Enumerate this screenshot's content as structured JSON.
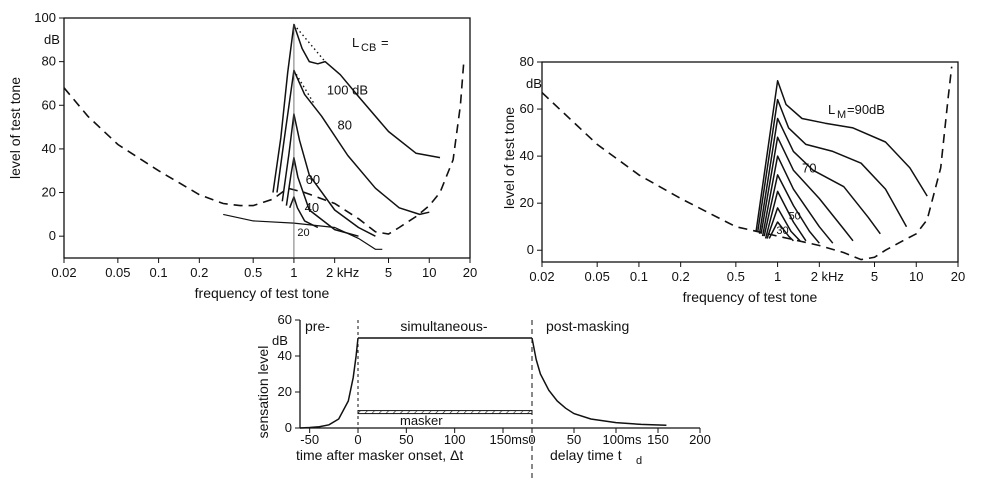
{
  "chart_data": [
    {
      "id": "A",
      "type": "line",
      "xscale": "log",
      "xlim": [
        0.02,
        20
      ],
      "ylim": [
        -10,
        100
      ],
      "xlabel": "frequency of test tone",
      "ylabel": "level of test tone",
      "xticks": [
        {
          "v": 0.02,
          "t": "0.02"
        },
        {
          "v": 0.05,
          "t": "0.05"
        },
        {
          "v": 0.1,
          "t": "0.1"
        },
        {
          "v": 0.2,
          "t": "0.2"
        },
        {
          "v": 0.5,
          "t": "0.5"
        },
        {
          "v": 1,
          "t": "1"
        },
        {
          "v": 2,
          "t": "2 kHz"
        },
        {
          "v": 5,
          "t": "5"
        },
        {
          "v": 10,
          "t": "10"
        },
        {
          "v": 20,
          "t": "20"
        }
      ],
      "yticks": [
        0,
        20,
        40,
        60,
        80,
        100
      ],
      "yunit": "dB",
      "legend_title": "L",
      "legend_title_sub": "CB",
      "legend_title_suffix": "=",
      "threshold": [
        [
          0.02,
          68
        ],
        [
          0.03,
          55
        ],
        [
          0.05,
          42
        ],
        [
          0.1,
          30
        ],
        [
          0.2,
          19
        ],
        [
          0.3,
          15
        ],
        [
          0.4,
          14
        ],
        [
          0.5,
          14
        ],
        [
          0.7,
          17
        ],
        [
          0.9,
          22
        ],
        [
          1.2,
          20
        ],
        [
          2.0,
          15
        ],
        [
          3.0,
          8
        ],
        [
          4.0,
          2
        ],
        [
          5.0,
          1
        ],
        [
          6.0,
          4
        ],
        [
          8.0,
          9
        ],
        [
          10.0,
          14
        ],
        [
          12.0,
          20
        ],
        [
          15.0,
          35
        ],
        [
          17.0,
          60
        ],
        [
          18.0,
          80
        ]
      ],
      "quiet_line": [
        [
          0.3,
          10
        ],
        [
          0.5,
          7
        ],
        [
          1.0,
          6
        ],
        [
          2.0,
          4
        ],
        [
          3.0,
          -1
        ],
        [
          4.0,
          -6
        ],
        [
          4.5,
          -6
        ]
      ],
      "curves": [
        {
          "label": "100 dB",
          "points": [
            [
              0.7,
              20
            ],
            [
              0.8,
              45
            ],
            [
              0.9,
              75
            ],
            [
              1.0,
              97
            ],
            [
              1.15,
              86
            ],
            [
              1.3,
              80
            ],
            [
              1.5,
              79
            ],
            [
              1.7,
              80
            ],
            [
              2.2,
              74
            ],
            [
              3.0,
              64
            ],
            [
              5.0,
              48
            ],
            [
              8.0,
              38
            ],
            [
              12.0,
              36
            ]
          ],
          "dotted": [
            [
              1.0,
              97
            ],
            [
              1.7,
              80
            ]
          ]
        },
        {
          "label": "80",
          "points": [
            [
              0.75,
              20
            ],
            [
              0.85,
              45
            ],
            [
              1.0,
              76
            ],
            [
              1.2,
              65
            ],
            [
              1.6,
              55
            ],
            [
              2.5,
              37
            ],
            [
              4.0,
              22
            ],
            [
              6.0,
              13
            ],
            [
              8.5,
              10
            ],
            [
              10.0,
              11
            ]
          ],
          "dotted": [
            [
              1.0,
              76
            ],
            [
              1.4,
              61
            ]
          ]
        },
        {
          "label": "60",
          "points": [
            [
              0.82,
              16
            ],
            [
              0.92,
              38
            ],
            [
              1.0,
              56
            ],
            [
              1.1,
              44
            ],
            [
              1.3,
              28
            ],
            [
              2.0,
              12
            ],
            [
              3.0,
              4
            ],
            [
              4.0,
              0
            ]
          ]
        },
        {
          "label": "40",
          "points": [
            [
              0.88,
              14
            ],
            [
              0.95,
              28
            ],
            [
              1.0,
              36
            ],
            [
              1.07,
              27
            ],
            [
              1.3,
              12
            ],
            [
              2.0,
              3
            ],
            [
              3.0,
              0
            ]
          ]
        },
        {
          "label": "20",
          "points": [
            [
              0.93,
              13
            ],
            [
              1.0,
              18
            ],
            [
              1.06,
              13
            ],
            [
              1.2,
              7
            ],
            [
              1.5,
              4
            ]
          ]
        }
      ]
    },
    {
      "id": "B",
      "type": "line",
      "xscale": "log",
      "xlim": [
        0.02,
        20
      ],
      "ylim": [
        -5,
        80
      ],
      "xlabel": "frequency of test tone",
      "ylabel": "level of test tone",
      "xticks": [
        {
          "v": 0.02,
          "t": "0.02"
        },
        {
          "v": 0.05,
          "t": "0.05"
        },
        {
          "v": 0.1,
          "t": "0.1"
        },
        {
          "v": 0.2,
          "t": "0.2"
        },
        {
          "v": 0.5,
          "t": "0.5"
        },
        {
          "v": 1,
          "t": "1"
        },
        {
          "v": 2,
          "t": "2 kHz"
        },
        {
          "v": 5,
          "t": "5"
        },
        {
          "v": 10,
          "t": "10"
        },
        {
          "v": 20,
          "t": "20"
        }
      ],
      "yticks": [
        0,
        20,
        40,
        60,
        80
      ],
      "yunit": "dB",
      "legend_title": "L",
      "legend_title_sub": "M",
      "legend_title_suffix": "=90dB",
      "threshold": [
        [
          0.02,
          67
        ],
        [
          0.05,
          45
        ],
        [
          0.1,
          32
        ],
        [
          0.2,
          22
        ],
        [
          0.5,
          10
        ],
        [
          1.0,
          6
        ],
        [
          2.0,
          2
        ],
        [
          3.0,
          -1
        ],
        [
          4.0,
          -4
        ],
        [
          5.0,
          -3
        ],
        [
          6.0,
          0
        ],
        [
          8.0,
          4
        ],
        [
          10.0,
          7
        ],
        [
          12.0,
          13
        ],
        [
          15.0,
          35
        ],
        [
          17.0,
          65
        ],
        [
          18.0,
          78
        ]
      ],
      "curves": [
        {
          "label": "90dB",
          "points": [
            [
              0.7,
              8
            ],
            [
              1.0,
              72
            ],
            [
              1.15,
              62
            ],
            [
              1.5,
              56
            ],
            [
              2.2,
              54
            ],
            [
              3.5,
              52
            ],
            [
              6.0,
              46
            ],
            [
              9.0,
              35
            ],
            [
              12.0,
              23
            ]
          ]
        },
        {
          "label": "",
          "points": [
            [
              0.72,
              8
            ],
            [
              1.0,
              64
            ],
            [
              1.2,
              52
            ],
            [
              1.6,
              45
            ],
            [
              2.5,
              42
            ],
            [
              4.0,
              37
            ],
            [
              6.0,
              26
            ],
            [
              8.5,
              10
            ]
          ]
        },
        {
          "label": "70",
          "points": [
            [
              0.74,
              7
            ],
            [
              1.0,
              56
            ],
            [
              1.3,
              42
            ],
            [
              1.8,
              34
            ],
            [
              3.0,
              27
            ],
            [
              4.5,
              14
            ],
            [
              5.5,
              7
            ]
          ]
        },
        {
          "label": "",
          "points": [
            [
              0.76,
              7
            ],
            [
              1.0,
              48
            ],
            [
              1.3,
              34
            ],
            [
              2.0,
              22
            ],
            [
              3.0,
              9
            ],
            [
              3.5,
              4
            ]
          ]
        },
        {
          "label": "",
          "points": [
            [
              0.78,
              6
            ],
            [
              1.0,
              40
            ],
            [
              1.3,
              26
            ],
            [
              2.0,
              10
            ],
            [
              2.5,
              3
            ]
          ]
        },
        {
          "label": "50",
          "points": [
            [
              0.8,
              6
            ],
            [
              1.0,
              32
            ],
            [
              1.3,
              19
            ],
            [
              1.7,
              8
            ],
            [
              2.0,
              3
            ]
          ]
        },
        {
          "label": "",
          "points": [
            [
              0.82,
              5
            ],
            [
              1.0,
              25
            ],
            [
              1.3,
              12
            ],
            [
              1.6,
              4
            ]
          ]
        },
        {
          "label": "30",
          "points": [
            [
              0.84,
              5
            ],
            [
              1.0,
              18
            ],
            [
              1.25,
              8
            ],
            [
              1.45,
              4
            ]
          ]
        },
        {
          "label": "",
          "points": [
            [
              0.87,
              5
            ],
            [
              1.0,
              12
            ],
            [
              1.2,
              6
            ],
            [
              1.3,
              4
            ]
          ]
        }
      ]
    },
    {
      "id": "C",
      "type": "line",
      "xscale": "linear",
      "ylim": [
        0,
        60
      ],
      "ylabel": "sensation level",
      "yticks": [
        0,
        20,
        40,
        60
      ],
      "yunit": "dB",
      "regions": [
        "pre-",
        "simultaneous-",
        "post-masking"
      ],
      "xlabel_left": "time after masker onset, Δt",
      "xlabel_right_main": "delay time t",
      "xlabel_right_sub": "d",
      "masker_label": "masker",
      "masker_level": 8,
      "plateau_level": 50,
      "left_axis": {
        "xlim": [
          -60,
          180
        ],
        "ticks": [
          {
            "v": -50,
            "t": "-50"
          },
          {
            "v": 0,
            "t": "0"
          },
          {
            "v": 50,
            "t": "50"
          },
          {
            "v": 100,
            "t": "100"
          },
          {
            "v": 150,
            "t": "150ms"
          }
        ]
      },
      "right_axis": {
        "xlim": [
          0,
          200
        ],
        "ticks": [
          {
            "v": 0,
            "t": "0"
          },
          {
            "v": 50,
            "t": "50"
          },
          {
            "v": 100,
            "t": "100ms"
          },
          {
            "v": 150,
            "t": "150"
          },
          {
            "v": 200,
            "t": "200"
          }
        ]
      },
      "pre_curve": [
        [
          -60,
          0
        ],
        [
          -50,
          0.3
        ],
        [
          -40,
          0.7
        ],
        [
          -30,
          1.8
        ],
        [
          -20,
          5
        ],
        [
          -10,
          15
        ],
        [
          -5,
          28
        ],
        [
          -2,
          40
        ],
        [
          0,
          50
        ]
      ],
      "post_curve": [
        [
          0,
          50
        ],
        [
          5,
          38
        ],
        [
          10,
          30
        ],
        [
          20,
          21
        ],
        [
          30,
          15
        ],
        [
          40,
          11
        ],
        [
          50,
          8
        ],
        [
          70,
          5
        ],
        [
          100,
          3
        ],
        [
          130,
          2
        ],
        [
          160,
          1.5
        ]
      ]
    }
  ]
}
